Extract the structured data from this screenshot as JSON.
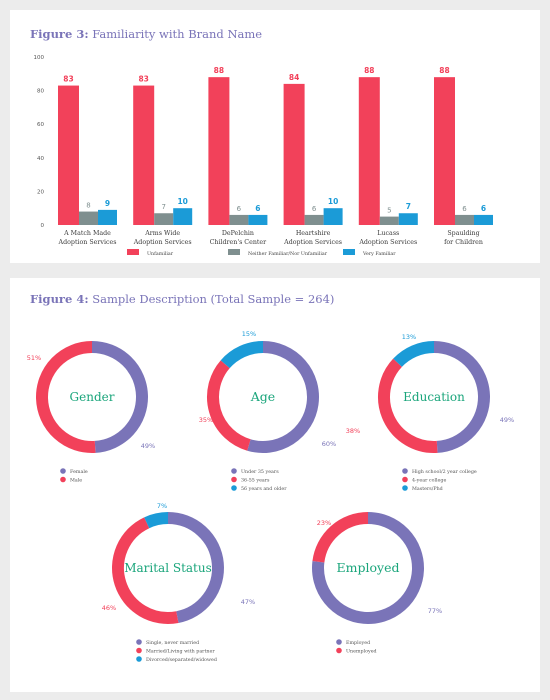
{
  "figure3": {
    "label": "Figure 3:",
    "title": "Familiarity with Brand Name"
  },
  "figure4": {
    "label": "Figure 4:",
    "title": "Sample Description (Total Sample = 264)"
  },
  "colors": {
    "unfamiliar": "#f2415a",
    "neither": "#7f8f8f",
    "very_familiar": "#1b9bd7",
    "purple": "#7a74b8",
    "red": "#f2415a",
    "blue": "#1b9bd7",
    "green": "#1aa57b"
  },
  "chart_data": [
    {
      "type": "bar",
      "title": "Familiarity with Brand Name",
      "categories": [
        "A Match Made Adoption Services",
        "Arms Wide Adoption Services",
        "DePelchin Children's Center",
        "Heartshire Adoption Services",
        "Lucass Adoption Services",
        "Spaulding for Children"
      ],
      "category_lines": [
        [
          "A Match Made",
          "Adoption Services"
        ],
        [
          "Arms Wide",
          "Adoption Services"
        ],
        [
          "DePelchin",
          "Children's Center"
        ],
        [
          "Heartshire",
          "Adoption Services"
        ],
        [
          "Lucass",
          "Adoption Services"
        ],
        [
          "Spaulding",
          "for Children"
        ]
      ],
      "series": [
        {
          "name": "Unfamiliar",
          "values": [
            83,
            83,
            88,
            84,
            88,
            88
          ]
        },
        {
          "name": "Neither Familiar/Nor Unfamiliar",
          "values": [
            8,
            7,
            6,
            6,
            5,
            6
          ]
        },
        {
          "name": "Very Familiar",
          "values": [
            9,
            10,
            6,
            10,
            7,
            6
          ]
        }
      ],
      "ylim": [
        0,
        100
      ],
      "yticks": [
        "0",
        "20",
        "40",
        "60",
        "80",
        "100"
      ],
      "legend_position": "bottom",
      "grid": false
    },
    {
      "type": "pie",
      "title": "Gender",
      "slices": [
        {
          "label": "Female",
          "value": 49,
          "text": "49%",
          "color": "#7a74b8"
        },
        {
          "label": "Male",
          "value": 51,
          "text": "51%",
          "color": "#f2415a"
        }
      ]
    },
    {
      "type": "pie",
      "title": "Age",
      "slices": [
        {
          "label": "Under 35 years",
          "value": 60,
          "text": "60%",
          "color": "#7a74b8"
        },
        {
          "label": "36-55 years",
          "value": 35,
          "text": "35%",
          "color": "#f2415a"
        },
        {
          "label": "56 years and older",
          "value": 15,
          "text": "15%",
          "color": "#1b9bd7"
        }
      ]
    },
    {
      "type": "pie",
      "title": "Education",
      "slices": [
        {
          "label": "High school/2 year college",
          "value": 49,
          "text": "49%",
          "color": "#7a74b8"
        },
        {
          "label": "4-year college",
          "value": 38,
          "text": "38%",
          "color": "#f2415a"
        },
        {
          "label": "Masters/Phd",
          "value": 13,
          "text": "13%",
          "color": "#1b9bd7"
        }
      ]
    },
    {
      "type": "pie",
      "title": "Marital Status",
      "slices": [
        {
          "label": "Single, never married",
          "value": 47,
          "text": "47%",
          "color": "#7a74b8"
        },
        {
          "label": "Married/Living with partner",
          "value": 46,
          "text": "46%",
          "color": "#f2415a"
        },
        {
          "label": "Divorced/separated/widowed",
          "value": 7,
          "text": "7%",
          "color": "#1b9bd7"
        }
      ]
    },
    {
      "type": "pie",
      "title": "Employed",
      "slices": [
        {
          "label": "Employed",
          "value": 77,
          "text": "77%",
          "color": "#7a74b8"
        },
        {
          "label": "Unemployed",
          "value": 23,
          "text": "23%",
          "color": "#f2415a"
        }
      ]
    }
  ]
}
